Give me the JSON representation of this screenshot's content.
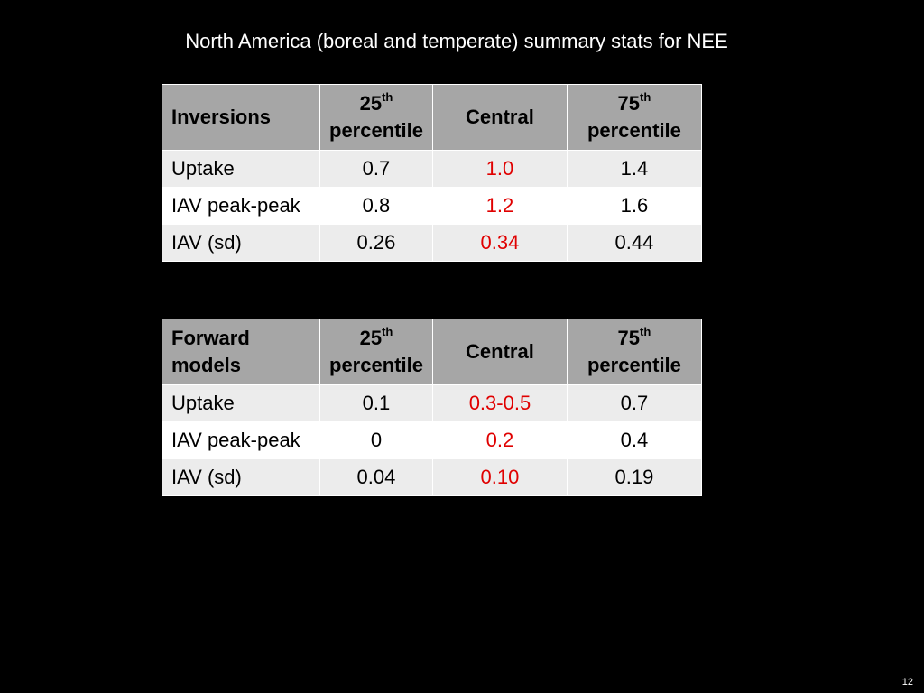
{
  "slide": {
    "title": "North America (boreal and temperate) summary stats for NEE",
    "page_number": "12"
  },
  "colors": {
    "background": "#000000",
    "header_fill": "#a6a6a6",
    "row_fill_light": "#ececec",
    "central_value_text": "#e00000"
  },
  "percentile_header": {
    "p25_number": "25",
    "p75_number": "75",
    "suffix": "th",
    "word": "percentile",
    "central": "Central"
  },
  "tables": [
    {
      "header_label": "Inversions",
      "rows": [
        {
          "label": "Uptake",
          "p25": "0.7",
          "central": "1.0",
          "p75": "1.4"
        },
        {
          "label": "IAV peak-peak",
          "p25": "0.8",
          "central": "1.2",
          "p75": "1.6"
        },
        {
          "label": "IAV (sd)",
          "p25": "0.26",
          "central": "0.34",
          "p75": "0.44"
        }
      ]
    },
    {
      "header_label": "Forward models",
      "rows": [
        {
          "label": "Uptake",
          "p25": "0.1",
          "central": "0.3-0.5",
          "p75": "0.7"
        },
        {
          "label": "IAV peak-peak",
          "p25": "0",
          "central": "0.2",
          "p75": "0.4"
        },
        {
          "label": "IAV (sd)",
          "p25": "0.04",
          "central": "0.10",
          "p75": "0.19"
        }
      ]
    }
  ]
}
